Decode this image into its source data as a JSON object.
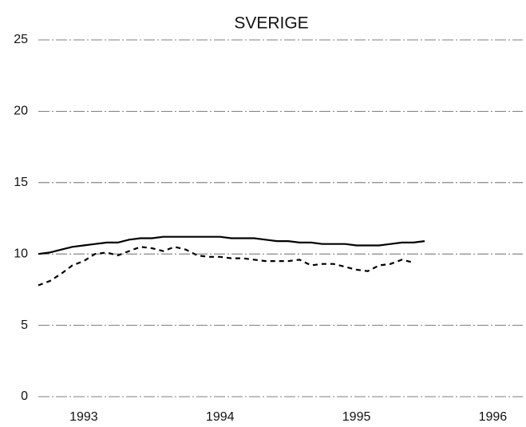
{
  "chart_data": {
    "type": "line",
    "title": "SVERIGE",
    "x": [
      1992.667,
      1992.75,
      1992.833,
      1992.917,
      1993,
      1993.083,
      1993.167,
      1993.25,
      1993.333,
      1993.417,
      1993.5,
      1993.583,
      1993.667,
      1993.75,
      1993.833,
      1993.917,
      1994,
      1994.083,
      1994.167,
      1994.25,
      1994.333,
      1994.417,
      1994.5,
      1994.583,
      1994.667,
      1994.75,
      1994.833,
      1994.917,
      1995,
      1995.083,
      1995.167,
      1995.25,
      1995.333,
      1995.417,
      1995.5
    ],
    "series": [
      {
        "color": "#000000",
        "dash": "solid",
        "values": [
          10.0,
          10.1,
          10.3,
          10.5,
          10.6,
          10.7,
          10.8,
          10.8,
          11.0,
          11.1,
          11.1,
          11.2,
          11.2,
          11.2,
          11.2,
          11.2,
          11.2,
          11.1,
          11.1,
          11.1,
          11.0,
          10.9,
          10.9,
          10.8,
          10.8,
          10.7,
          10.7,
          10.7,
          10.6,
          10.6,
          10.6,
          10.7,
          10.8,
          10.8,
          10.9
        ]
      },
      {
        "color": "#000000",
        "dash": "dashed",
        "values": [
          7.8,
          8.1,
          8.6,
          9.2,
          9.5,
          10.0,
          10.1,
          9.9,
          10.2,
          10.5,
          10.4,
          10.2,
          10.5,
          10.3,
          9.9,
          9.8,
          9.8,
          9.7,
          9.7,
          9.6,
          9.5,
          9.5,
          9.5,
          9.6,
          9.2,
          9.3,
          9.3,
          9.1,
          8.9,
          8.8,
          9.2,
          9.3,
          9.6,
          9.4,
          null
        ]
      }
    ],
    "xlim": [
      1992.667,
      1996.22
    ],
    "xticks": [
      1993,
      1994,
      1995,
      1996
    ],
    "ylim": [
      0,
      25
    ],
    "yticks": [
      0,
      5,
      10,
      15,
      20,
      25
    ],
    "grid": true
  }
}
